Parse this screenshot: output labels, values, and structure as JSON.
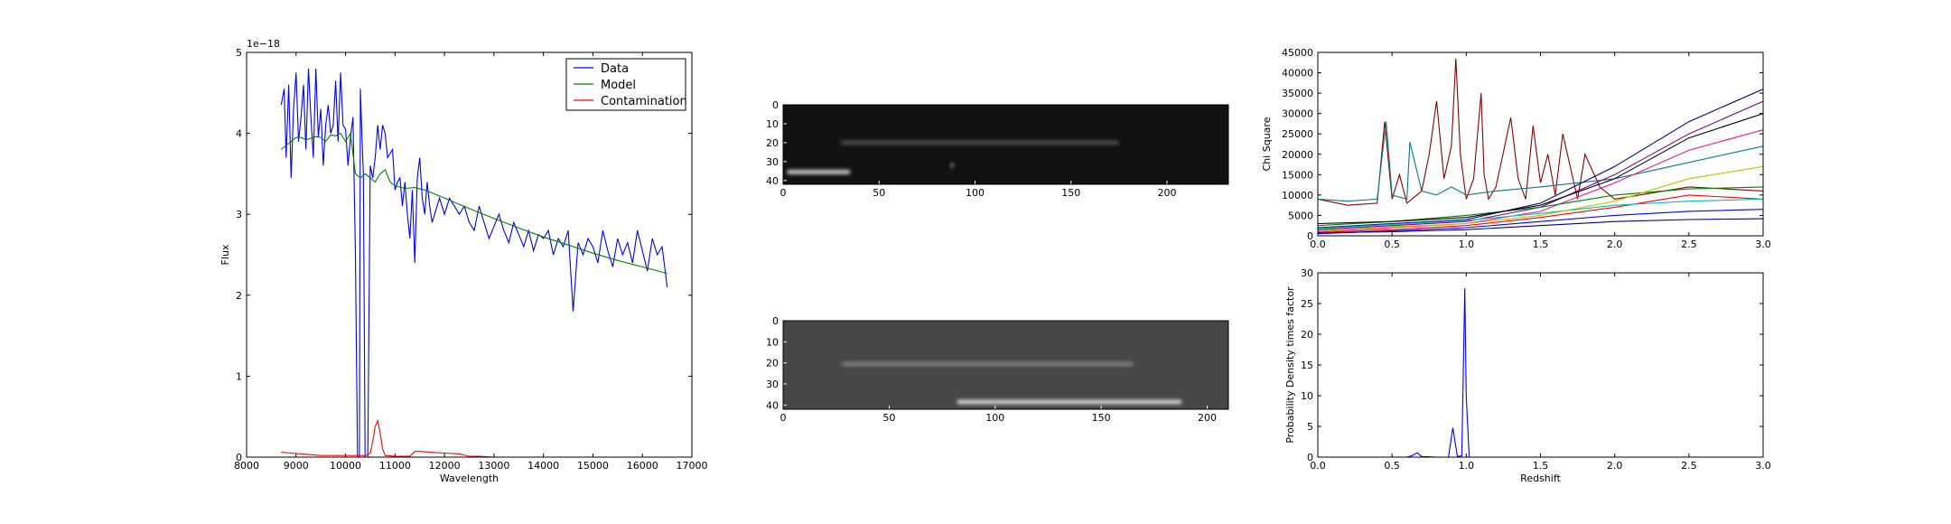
{
  "chart_data": [
    {
      "type": "line",
      "title": "",
      "xlabel": "Wavelength",
      "ylabel": "Flux",
      "offset_label": "1e−18",
      "xlim": [
        8000,
        17000
      ],
      "ylim": [
        0,
        5
      ],
      "xticks": [
        "8000",
        "9000",
        "10000",
        "11000",
        "12000",
        "13000",
        "14000",
        "15000",
        "16000",
        "17000"
      ],
      "yticks": [
        "0",
        "1",
        "2",
        "3",
        "4",
        "5"
      ],
      "legend_position": "top-right",
      "series": [
        {
          "name": "Data",
          "color": "#0000ff",
          "x": [
            8700,
            8760,
            8800,
            8850,
            8900,
            8950,
            9000,
            9050,
            9100,
            9150,
            9200,
            9250,
            9300,
            9350,
            9400,
            9450,
            9500,
            9550,
            9600,
            9650,
            9700,
            9750,
            9800,
            9850,
            9900,
            9950,
            10000,
            10050,
            10100,
            10150,
            10200,
            10250,
            10280,
            10300,
            10330,
            10360,
            10400,
            10450,
            10500,
            10550,
            10600,
            10650,
            10700,
            10750,
            10800,
            10850,
            10900,
            10950,
            11000,
            11050,
            11100,
            11150,
            11200,
            11250,
            11300,
            11350,
            11400,
            11450,
            11500,
            11550,
            11600,
            11650,
            11700,
            11750,
            11800,
            11850,
            11900,
            11950,
            12000,
            12100,
            12200,
            12300,
            12400,
            12500,
            12600,
            12700,
            12800,
            12900,
            13000,
            13100,
            13200,
            13300,
            13400,
            13500,
            13600,
            13700,
            13800,
            13900,
            14000,
            14100,
            14200,
            14300,
            14400,
            14500,
            14600,
            14700,
            14800,
            14900,
            15000,
            15100,
            15200,
            15300,
            15400,
            15500,
            15600,
            15700,
            15800,
            15900,
            16000,
            16100,
            16200,
            16300,
            16400,
            16500
          ],
          "y": [
            4.35,
            4.55,
            3.7,
            4.6,
            3.45,
            4.3,
            4.75,
            3.9,
            4.2,
            4.6,
            3.8,
            4.8,
            4.2,
            3.7,
            4.8,
            3.95,
            4.3,
            3.6,
            4.1,
            4.35,
            4.0,
            4.1,
            4.65,
            3.9,
            4.75,
            4.1,
            4.05,
            3.6,
            3.95,
            4.2,
            2.5,
            -0.5,
            0.0,
            4.55,
            4.0,
            3.5,
            -0.5,
            0.0,
            3.6,
            3.45,
            3.7,
            4.1,
            3.8,
            4.1,
            4.0,
            3.7,
            3.75,
            3.8,
            3.3,
            3.4,
            3.45,
            3.1,
            3.4,
            3.0,
            2.7,
            3.3,
            2.4,
            3.45,
            3.7,
            3.2,
            3.0,
            3.4,
            3.1,
            2.9,
            3.0,
            3.1,
            3.2,
            3.1,
            3.0,
            3.2,
            3.1,
            3.0,
            3.1,
            2.9,
            2.8,
            3.1,
            2.9,
            2.7,
            2.85,
            3.0,
            2.8,
            2.65,
            2.9,
            2.75,
            2.6,
            2.8,
            2.55,
            2.75,
            2.7,
            2.8,
            2.5,
            2.7,
            2.6,
            2.8,
            1.8,
            2.65,
            2.5,
            2.7,
            2.6,
            2.4,
            2.8,
            2.55,
            2.35,
            2.7,
            2.5,
            2.65,
            2.4,
            2.8,
            2.55,
            2.3,
            2.7,
            2.5,
            2.6,
            2.1
          ]
        },
        {
          "name": "Model",
          "color": "#008000",
          "x": [
            8700,
            8800,
            8900,
            9000,
            9100,
            9200,
            9300,
            9400,
            9500,
            9600,
            9700,
            9800,
            9900,
            10000,
            10100,
            10200,
            10300,
            10400,
            10500,
            10600,
            10700,
            10800,
            10900,
            11000,
            11200,
            11400,
            11600,
            11800,
            12000,
            12500,
            13000,
            13500,
            14000,
            14500,
            15000,
            15500,
            16000,
            16500
          ],
          "y": [
            3.8,
            3.85,
            3.9,
            3.95,
            3.95,
            3.92,
            3.94,
            3.96,
            3.95,
            3.9,
            3.98,
            3.97,
            4.0,
            3.9,
            4.0,
            3.5,
            3.45,
            3.5,
            3.45,
            3.4,
            3.5,
            3.55,
            3.4,
            3.35,
            3.32,
            3.33,
            3.3,
            3.25,
            3.2,
            3.07,
            2.95,
            2.83,
            2.72,
            2.62,
            2.52,
            2.43,
            2.35,
            2.27
          ]
        },
        {
          "name": "Contamination",
          "color": "#ff0000",
          "x": [
            8700,
            8900,
            9100,
            9300,
            9500,
            9700,
            9900,
            10100,
            10300,
            10400,
            10500,
            10550,
            10600,
            10650,
            10700,
            10750,
            10800,
            11000,
            11300,
            11400,
            11500,
            11700,
            12000,
            12300,
            12500,
            12700,
            13000,
            14000,
            15000,
            16000,
            16500
          ],
          "y": [
            0.06,
            0.05,
            0.04,
            0.03,
            0.02,
            0.02,
            0.02,
            0.02,
            0.02,
            0.02,
            0.05,
            0.2,
            0.38,
            0.45,
            0.3,
            0.1,
            0.02,
            0.01,
            0.01,
            0.07,
            0.07,
            0.06,
            0.05,
            0.04,
            0.01,
            0.01,
            0.0,
            0.0,
            0.0,
            0.0,
            0.0
          ]
        }
      ]
    },
    {
      "type": "heatmap",
      "title": "",
      "xlabel": "",
      "ylabel": "",
      "xlim": [
        0,
        232
      ],
      "ylim": [
        42,
        0
      ],
      "xticks": [
        "0",
        "50",
        "100",
        "150",
        "200"
      ],
      "yticks": [
        "0",
        "10",
        "20",
        "30",
        "40"
      ],
      "colormap": "gray",
      "features": [
        {
          "kind": "trace",
          "x": [
            30,
            175
          ],
          "y": 20,
          "brightness": 0.35
        },
        {
          "kind": "trace",
          "x": [
            2,
            35
          ],
          "y": 35.5,
          "brightness": 0.95
        },
        {
          "kind": "spot",
          "x": 88,
          "y": 32,
          "brightness": 0.5
        }
      ]
    },
    {
      "type": "heatmap",
      "title": "",
      "xlabel": "",
      "ylabel": "",
      "xlim": [
        0,
        210
      ],
      "ylim": [
        42,
        0
      ],
      "xticks": [
        "0",
        "50",
        "100",
        "150",
        "200"
      ],
      "yticks": [
        "0",
        "10",
        "20",
        "30",
        "40"
      ],
      "colormap": "gray",
      "features": [
        {
          "kind": "trace",
          "x": [
            28,
            165
          ],
          "y": 20.5,
          "brightness": 0.55
        },
        {
          "kind": "trace",
          "x": [
            82,
            188
          ],
          "y": 38.5,
          "brightness": 0.95
        }
      ]
    },
    {
      "type": "line",
      "title": "",
      "xlabel": "",
      "ylabel": "Chi Square",
      "xlim": [
        0,
        3.0
      ],
      "ylim": [
        0,
        45000
      ],
      "xticks": [
        "0.0",
        "0.5",
        "1.0",
        "1.5",
        "2.0",
        "2.5",
        "3.0"
      ],
      "yticks": [
        "0",
        "5000",
        "10000",
        "15000",
        "20000",
        "25000",
        "30000",
        "35000",
        "40000",
        "45000"
      ],
      "series_count_note": "",
      "series": [
        {
          "color": "#8b0000",
          "x": [
            0,
            0.2,
            0.4,
            0.45,
            0.5,
            0.55,
            0.6,
            0.7,
            0.75,
            0.8,
            0.85,
            0.9,
            0.93,
            0.96,
            1.0,
            1.05,
            1.1,
            1.12,
            1.15,
            1.2,
            1.3,
            1.35,
            1.4,
            1.45,
            1.5,
            1.55,
            1.6,
            1.65,
            1.7,
            1.75,
            1.8,
            1.9,
            2.0,
            2.5,
            3.0
          ],
          "y": [
            9000,
            7500,
            8000,
            28000,
            9000,
            15000,
            8000,
            11000,
            20000,
            33000,
            14000,
            22000,
            43500,
            20000,
            9000,
            14000,
            35000,
            15000,
            9000,
            12000,
            29000,
            14000,
            9000,
            27000,
            13000,
            20000,
            10000,
            25000,
            17000,
            9000,
            20000,
            12000,
            9000,
            12000,
            11000
          ]
        },
        {
          "color": "#008080",
          "x": [
            0,
            0.2,
            0.4,
            0.46,
            0.5,
            0.6,
            0.62,
            0.7,
            0.8,
            0.9,
            1.0,
            1.2,
            1.5,
            2.0,
            2.5,
            3.0
          ],
          "y": [
            9000,
            8500,
            9000,
            28000,
            10000,
            9000,
            23000,
            11000,
            10000,
            12000,
            10000,
            11000,
            12000,
            14000,
            18000,
            22000
          ]
        },
        {
          "color": "#000080",
          "x": [
            0,
            0.5,
            1.0,
            1.5,
            2.0,
            2.5,
            3.0
          ],
          "y": [
            2000,
            3000,
            4000,
            8000,
            17000,
            28000,
            36000
          ]
        },
        {
          "color": "#800080",
          "x": [
            0,
            0.5,
            1.0,
            1.5,
            2.0,
            2.5,
            3.0
          ],
          "y": [
            1500,
            2500,
            3500,
            7000,
            15000,
            25000,
            33000
          ]
        },
        {
          "color": "#ff1493",
          "x": [
            0,
            0.5,
            1.0,
            1.5,
            2.0,
            2.5,
            3.0
          ],
          "y": [
            1000,
            2000,
            3000,
            6000,
            13000,
            21000,
            26000
          ]
        },
        {
          "color": "#008000",
          "x": [
            0,
            0.5,
            1.0,
            1.5,
            2.0,
            2.5,
            3.0
          ],
          "y": [
            2500,
            3500,
            5000,
            7000,
            10000,
            11500,
            12000
          ]
        },
        {
          "color": "#ff0000",
          "x": [
            0,
            0.5,
            1.0,
            1.5,
            2.0,
            2.5,
            3.0
          ],
          "y": [
            800,
            1500,
            2500,
            4500,
            7000,
            10000,
            9000
          ]
        },
        {
          "color": "#0000ff",
          "x": [
            0,
            0.5,
            1.0,
            1.5,
            2.0,
            2.5,
            3.0
          ],
          "y": [
            500,
            1200,
            2000,
            3500,
            5000,
            6000,
            6500
          ]
        },
        {
          "color": "#00bfbf",
          "x": [
            0,
            0.5,
            1.0,
            1.5,
            2.0,
            2.5,
            3.0
          ],
          "y": [
            1800,
            2800,
            3800,
            5500,
            7500,
            8500,
            9000
          ]
        },
        {
          "color": "#bfbf00",
          "x": [
            0,
            0.5,
            1.0,
            1.5,
            2.0,
            2.5,
            3.0
          ],
          "y": [
            1200,
            2200,
            3000,
            5000,
            8500,
            14000,
            17000
          ]
        },
        {
          "color": "#000000",
          "x": [
            0,
            0.5,
            1.0,
            1.5,
            2.0,
            2.5,
            3.0
          ],
          "y": [
            3000,
            3500,
            4500,
            7500,
            14000,
            24000,
            30000
          ]
        },
        {
          "color": "#00008b",
          "x": [
            0,
            0.5,
            1.0,
            1.5,
            2.0,
            2.5,
            3.0
          ],
          "y": [
            700,
            1000,
            1500,
            2500,
            3500,
            4000,
            4200
          ]
        }
      ]
    },
    {
      "type": "line",
      "title": "",
      "xlabel": "Redshift",
      "ylabel": "Probability Density times factor",
      "xlim": [
        0,
        3.0
      ],
      "ylim": [
        0,
        30
      ],
      "xticks": [
        "0.0",
        "0.5",
        "1.0",
        "1.5",
        "2.0",
        "2.5",
        "3.0"
      ],
      "yticks": [
        "0",
        "5",
        "10",
        "15",
        "20",
        "25",
        "30"
      ],
      "series": [
        {
          "color": "#0000ff",
          "x": [
            0,
            0.6,
            0.64,
            0.67,
            0.7,
            0.8,
            0.88,
            0.91,
            0.94,
            0.97,
            0.99,
            1.0,
            1.02,
            1.05,
            1.2,
            2.0,
            3.0
          ],
          "y": [
            0,
            0,
            0.3,
            0.7,
            0.1,
            0,
            0,
            4.8,
            0.1,
            0.2,
            27.5,
            10,
            0,
            0,
            0,
            0,
            0
          ]
        }
      ]
    }
  ]
}
